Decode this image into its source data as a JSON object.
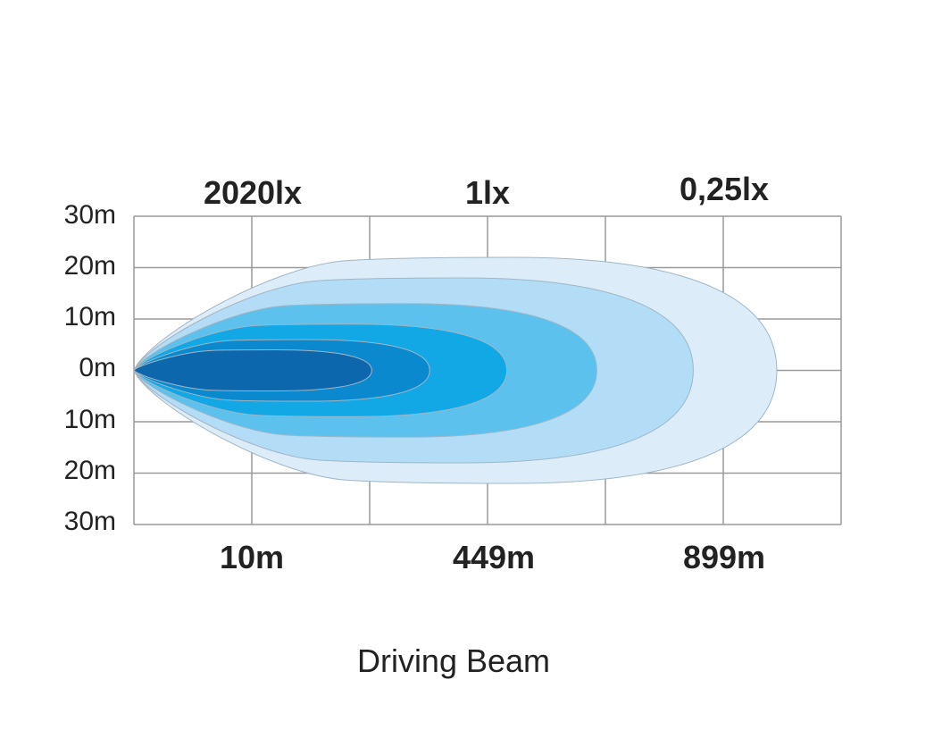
{
  "chart_data": {
    "type": "area",
    "title": "Driving Beam",
    "y_tick_labels": [
      "30m",
      "20m",
      "10m",
      "0m",
      "10m",
      "20m",
      "30m"
    ],
    "top_labels": [
      "2020lx",
      "1lx",
      "0,25lx"
    ],
    "bottom_labels": [
      "10m",
      "449m",
      "899m"
    ],
    "grid": true,
    "series": [
      {
        "color": "#dcedf9",
        "reach": 1.0,
        "half_width": 22
      },
      {
        "color": "#b3dcf6",
        "reach": 0.87,
        "half_width": 18
      },
      {
        "color": "#5dc1ed",
        "reach": 0.72,
        "half_width": 13
      },
      {
        "color": "#12a8e6",
        "reach": 0.58,
        "half_width": 9
      },
      {
        "color": "#0a89cf",
        "reach": 0.46,
        "half_width": 6
      },
      {
        "color": "#0c67ad",
        "reach": 0.37,
        "half_width": 4
      }
    ]
  }
}
